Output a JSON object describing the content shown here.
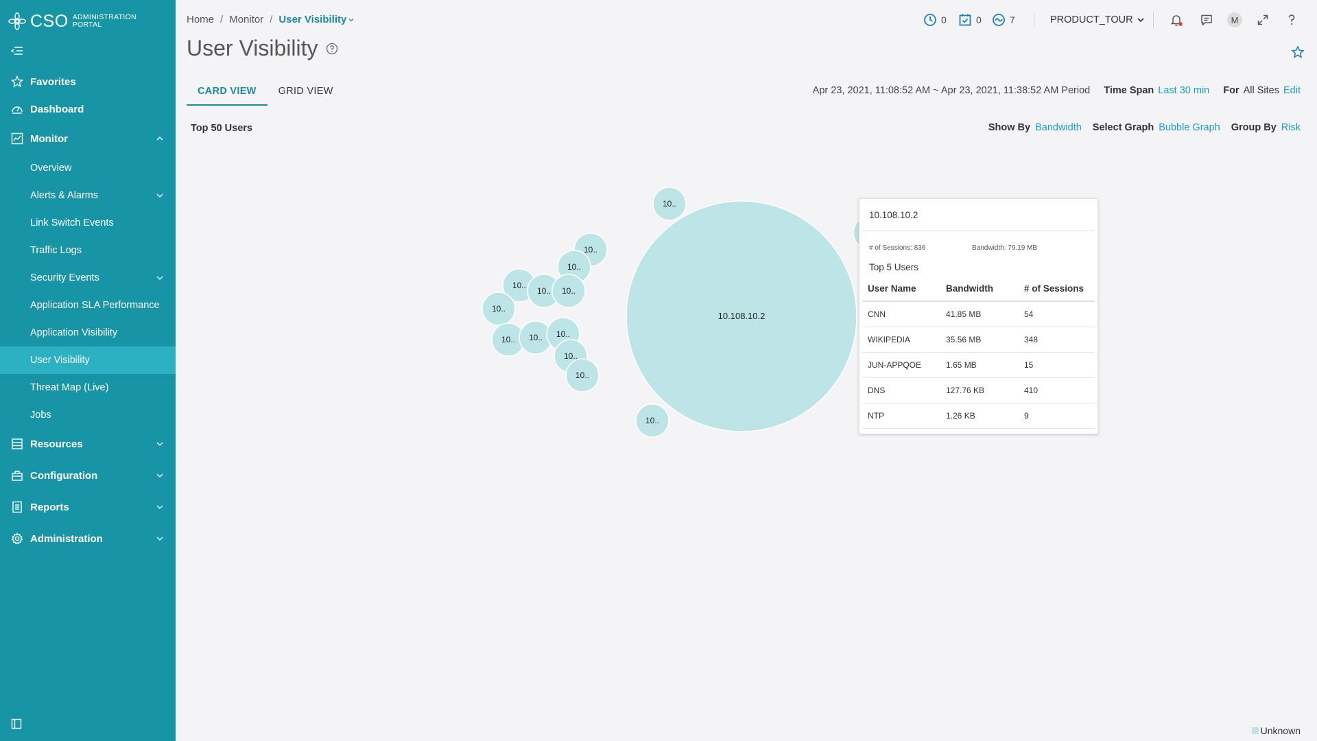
{
  "app": {
    "brand": "CSO",
    "brand_sub_line1": "ADMINISTRATION",
    "brand_sub_line2": "PORTAL"
  },
  "colors": {
    "sidebar_bg": "#1794a5",
    "sidebar_active": "#2cb1c2",
    "accent": "#1a8aa1",
    "link": "#1a9bd7",
    "bubble": "#bde4e6",
    "bubble_stroke": "#ffffff"
  },
  "sidebar": {
    "favorites": "Favorites",
    "dashboard": "Dashboard",
    "monitor": "Monitor",
    "monitor_items": [
      "Overview",
      "Alerts & Alarms",
      "Link Switch Events",
      "Traffic Logs",
      "Security Events",
      "Application SLA Performance",
      "Application Visibility",
      "User Visibility",
      "Threat Map (Live)",
      "Jobs"
    ],
    "resources": "Resources",
    "configuration": "Configuration",
    "reports": "Reports",
    "administration": "Administration"
  },
  "header": {
    "breadcrumb": [
      "Home",
      "Monitor",
      "User Visibility"
    ],
    "counter_clock": "0",
    "counter_calendar": "0",
    "counter_activity": "7",
    "tenant": "PRODUCT_TOUR",
    "avatar_initial": "M"
  },
  "page": {
    "title": "User Visibility",
    "tabs": [
      "CARD VIEW",
      "GRID VIEW"
    ],
    "active_tab": "CARD VIEW",
    "period": "Apr 23, 2021, 11:08:52 AM ~ Apr 23, 2021, 11:38:52 AM Period",
    "time_span_label": "Time Span",
    "time_span_value": "Last 30 min",
    "for_label": "For",
    "for_value": "All Sites",
    "edit_label": "Edit",
    "card_title": "Top 50 Users",
    "show_by_label": "Show By",
    "show_by_value": "Bandwidth",
    "select_graph_label": "Select Graph",
    "select_graph_value": "Bubble Graph",
    "group_by_label": "Group By",
    "group_by_value": "Risk"
  },
  "chart_data": {
    "type": "bubble",
    "size_metric": "Bandwidth",
    "group": "Unknown",
    "bubbles": [
      {
        "label": "10.108.10.2"
      },
      {
        "label": "10.."
      },
      {
        "label": "10.."
      },
      {
        "label": "10.."
      },
      {
        "label": "10.."
      },
      {
        "label": "10.."
      },
      {
        "label": "10.."
      },
      {
        "label": "10.."
      },
      {
        "label": "10.."
      },
      {
        "label": "10.."
      },
      {
        "label": "10.."
      },
      {
        "label": "10.."
      },
      {
        "label": "10.."
      },
      {
        "label": "10.."
      }
    ]
  },
  "tooltip": {
    "ip": "10.108.10.2",
    "sessions_text": "# of Sessions: 836",
    "bandwidth_text": "Bandwidth: 79.19 MB",
    "top5_title": "Top 5 Users",
    "columns": [
      "User Name",
      "Bandwidth",
      "# of Sessions"
    ],
    "rows": [
      [
        "CNN",
        "41.85 MB",
        "54"
      ],
      [
        "WIKIPEDIA",
        "35.56 MB",
        "348"
      ],
      [
        "JUN-APPQOE",
        "1.65 MB",
        "15"
      ],
      [
        "DNS",
        "127.76 KB",
        "410"
      ],
      [
        "NTP",
        "1.26 KB",
        "9"
      ]
    ]
  },
  "legend": {
    "items": [
      {
        "label": "Unknown",
        "color": "#bde4e6"
      }
    ]
  }
}
